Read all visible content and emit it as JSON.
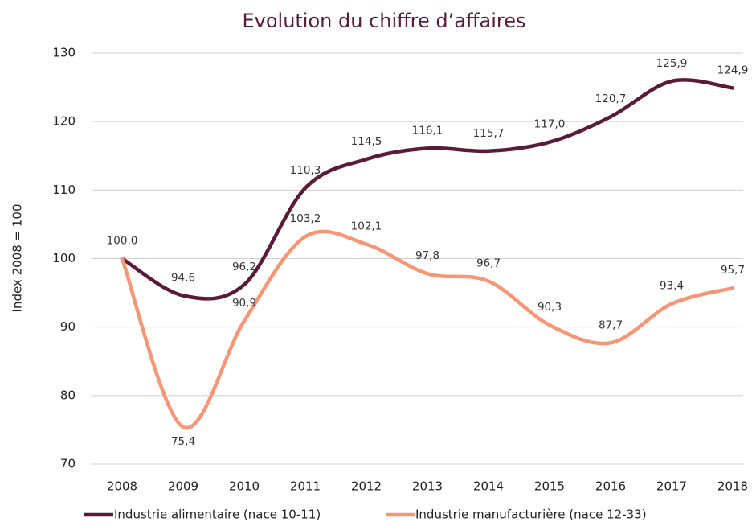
{
  "chart_data": {
    "type": "line",
    "title": "Evolution du chiffre d’affaires",
    "ylabel": "Index 2008 = 100",
    "categories": [
      "2008",
      "2009",
      "2010",
      "2011",
      "2012",
      "2013",
      "2014",
      "2015",
      "2016",
      "2017",
      "2018"
    ],
    "series": [
      {
        "name": "Industrie alimentaire (nace 10-11)",
        "color": "#5b1a3a",
        "values": [
          100.0,
          94.6,
          96.2,
          110.3,
          114.5,
          116.1,
          115.7,
          117.0,
          120.7,
          125.9,
          124.9
        ],
        "value_labels": [
          "100,0",
          "94,6",
          "96,2",
          "110,3",
          "114,5",
          "116,1",
          "115,7",
          "117,0",
          "120,7",
          "125,9",
          "124,9"
        ]
      },
      {
        "name": "Industrie manufacturière (nace 12-33)",
        "color": "#f79574",
        "values": [
          100.0,
          75.4,
          90.9,
          103.2,
          102.1,
          97.8,
          96.7,
          90.3,
          87.7,
          93.4,
          95.7
        ],
        "value_labels": [
          "100,0",
          "75,4",
          "90,9",
          "103,2",
          "102,1",
          "97,8",
          "96,7",
          "90,3",
          "87,7",
          "93,4",
          "95,7"
        ]
      }
    ],
    "ylim": [
      70,
      130
    ],
    "yticks": [
      70,
      80,
      90,
      100,
      110,
      120,
      130
    ],
    "grid": true,
    "legend": "bottom"
  }
}
